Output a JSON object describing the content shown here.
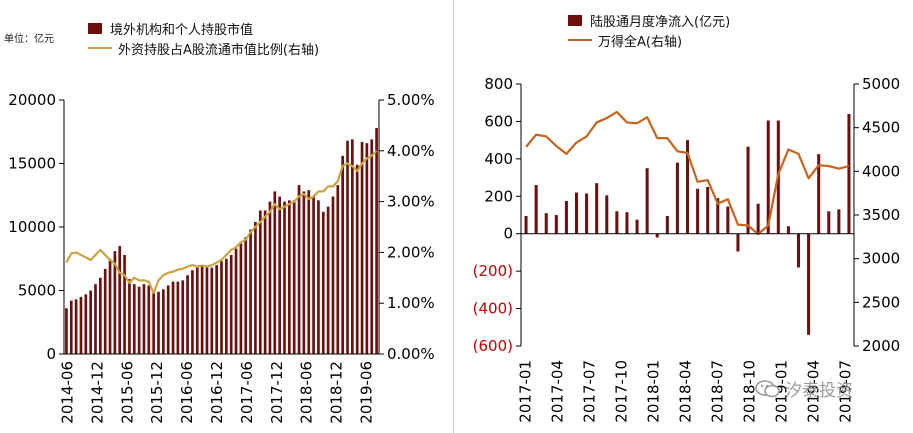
{
  "left": {
    "unit_label": "单位：亿元",
    "legend": {
      "bar_name": "境外机构和个人持股市值",
      "line_name": "外资持股占A股流通市值比例(右轴)"
    },
    "colors": {
      "bar": "#6b0f0f",
      "line": "#c9a441"
    },
    "chart_data": {
      "type": "bar",
      "y_left": {
        "range": [
          0,
          20000
        ],
        "ticks": [
          "0",
          "5000",
          "10000",
          "15000",
          "20000"
        ]
      },
      "y_right": {
        "range": [
          0,
          5
        ],
        "ticks": [
          "0.00%",
          "1.00%",
          "2.00%",
          "3.00%",
          "4.00%",
          "5.00%"
        ]
      },
      "x_tick_labels": [
        "2014-06",
        "2014-12",
        "2015-06",
        "2015-12",
        "2016-06",
        "2016-12",
        "2017-06",
        "2017-12",
        "2018-06",
        "2018-12",
        "2019-06"
      ],
      "bar_values": [
        3600,
        4200,
        4300,
        4500,
        4700,
        5000,
        5500,
        6000,
        6700,
        7500,
        8100,
        8500,
        7800,
        5900,
        5500,
        5300,
        5500,
        5400,
        5000,
        4900,
        5100,
        5400,
        5700,
        5700,
        5800,
        6200,
        6600,
        6800,
        6900,
        6900,
        6800,
        7000,
        7300,
        7500,
        7800,
        8300,
        8700,
        9200,
        9800,
        10400,
        11300,
        11300,
        12000,
        12800,
        12400,
        12000,
        12100,
        12100,
        13300,
        12800,
        12900,
        12400,
        12100,
        11200,
        11600,
        12400,
        13300,
        15600,
        16800,
        16900,
        14900,
        16700,
        16600,
        16900,
        17800
      ],
      "line_values": [
        1.8,
        1.98,
        2.0,
        1.95,
        1.9,
        1.85,
        1.95,
        2.05,
        1.95,
        1.85,
        1.78,
        1.6,
        1.55,
        1.4,
        1.5,
        1.45,
        1.45,
        1.42,
        1.2,
        1.45,
        1.55,
        1.6,
        1.62,
        1.66,
        1.68,
        1.72,
        1.75,
        1.72,
        1.74,
        1.72,
        1.75,
        1.8,
        1.85,
        1.95,
        2.05,
        2.1,
        2.2,
        2.25,
        2.4,
        2.5,
        2.6,
        2.7,
        2.8,
        2.95,
        2.85,
        2.9,
        2.95,
        3.0,
        3.1,
        3.15,
        3.05,
        3.1,
        3.2,
        3.2,
        3.3,
        3.3,
        3.4,
        3.7,
        3.75,
        3.7,
        3.6,
        3.75,
        3.85,
        3.9,
        4.0
      ]
    }
  },
  "right": {
    "legend": {
      "bar_name": "陆股通月度净流入(亿元)",
      "line_name": "万得全A(右轴)"
    },
    "colors": {
      "bar": "#6b0f0f",
      "line": "#c5641c",
      "negative_tick": "#c00000"
    },
    "chart_data": {
      "type": "bar",
      "y_left": {
        "range": [
          -600,
          800
        ],
        "ticks": [
          "(600)",
          "(400)",
          "(200)",
          "0",
          "200",
          "400",
          "600",
          "800"
        ]
      },
      "y_right": {
        "range": [
          2000,
          5000
        ],
        "ticks": [
          "2000",
          "2500",
          "3000",
          "3500",
          "4000",
          "4500",
          "5000"
        ]
      },
      "x_tick_labels": [
        "2017-01",
        "2017-04",
        "2017-07",
        "2017-10",
        "2018-01",
        "2018-04",
        "2018-07",
        "2018-10",
        "2019-01",
        "2019-04",
        "2019-07"
      ],
      "bar_values": [
        95,
        260,
        110,
        100,
        175,
        220,
        215,
        270,
        205,
        120,
        115,
        75,
        350,
        -20,
        95,
        380,
        500,
        240,
        250,
        190,
        145,
        -95,
        465,
        160,
        605,
        605,
        40,
        -180,
        -540,
        425,
        120,
        130,
        640
      ],
      "line_values": [
        4280,
        4420,
        4400,
        4290,
        4200,
        4330,
        4400,
        4560,
        4610,
        4680,
        4560,
        4550,
        4620,
        4380,
        4380,
        4230,
        4210,
        3880,
        3900,
        3630,
        3680,
        3390,
        3380,
        3280,
        3380,
        3970,
        4250,
        4200,
        3920,
        4070,
        4060,
        4030,
        4060
      ]
    }
  },
  "watermark": {
    "text": "汐泰投资"
  }
}
